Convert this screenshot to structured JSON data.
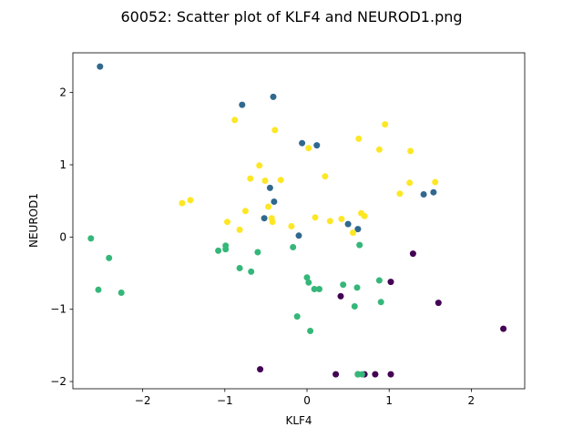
{
  "chart_data": {
    "type": "scatter",
    "title": "60052: Scatter plot of KLF4 and NEUROD1.png",
    "xlabel": "KLF4",
    "ylabel": "NEUROD1",
    "xlim": [
      -2.85,
      2.65
    ],
    "ylim": [
      -2.1,
      2.55
    ],
    "xticks": [
      -2,
      -1,
      0,
      1,
      2
    ],
    "yticks": [
      -2,
      -1,
      0,
      1,
      2
    ],
    "grid": false,
    "legend": "none",
    "series": [
      {
        "color": "#440154",
        "points": [
          [
            -0.57,
            -1.83
          ],
          [
            0.35,
            -1.9
          ],
          [
            0.62,
            -1.9
          ],
          [
            0.7,
            -1.9
          ],
          [
            0.83,
            -1.9
          ],
          [
            1.02,
            -1.9
          ],
          [
            1.02,
            -0.62
          ],
          [
            0.41,
            -0.82
          ],
          [
            1.29,
            -0.23
          ],
          [
            1.6,
            -0.91
          ],
          [
            2.39,
            -1.27
          ]
        ]
      },
      {
        "color": "#31688e",
        "points": [
          [
            -2.52,
            2.36
          ],
          [
            -0.79,
            1.83
          ],
          [
            -0.41,
            1.94
          ],
          [
            -0.06,
            1.3
          ],
          [
            0.12,
            1.27
          ],
          [
            -0.45,
            0.68
          ],
          [
            -0.4,
            0.49
          ],
          [
            -0.52,
            0.26
          ],
          [
            -0.1,
            0.02
          ],
          [
            0.5,
            0.18
          ],
          [
            0.62,
            0.11
          ],
          [
            1.42,
            0.59
          ],
          [
            1.54,
            0.62
          ]
        ]
      },
      {
        "color": "#35b779",
        "points": [
          [
            -2.63,
            -0.02
          ],
          [
            -2.41,
            -0.29
          ],
          [
            -2.54,
            -0.73
          ],
          [
            -2.26,
            -0.77
          ],
          [
            -1.08,
            -0.19
          ],
          [
            -0.99,
            -0.12
          ],
          [
            -0.99,
            -0.17
          ],
          [
            -0.82,
            -0.43
          ],
          [
            -0.68,
            -0.48
          ],
          [
            -0.6,
            -0.21
          ],
          [
            -0.17,
            -0.14
          ],
          [
            -0.12,
            -1.1
          ],
          [
            0.0,
            -0.56
          ],
          [
            0.02,
            -0.63
          ],
          [
            0.09,
            -0.72
          ],
          [
            0.15,
            -0.72
          ],
          [
            0.04,
            -1.3
          ],
          [
            0.44,
            -0.66
          ],
          [
            0.58,
            -0.96
          ],
          [
            0.61,
            -0.7
          ],
          [
            0.64,
            -0.11
          ],
          [
            0.88,
            -0.6
          ],
          [
            0.9,
            -0.9
          ],
          [
            0.62,
            -1.9
          ],
          [
            0.67,
            -1.9
          ]
        ]
      },
      {
        "color": "#fde725",
        "points": [
          [
            -1.52,
            0.47
          ],
          [
            -1.42,
            0.51
          ],
          [
            -0.97,
            0.21
          ],
          [
            -0.82,
            0.1
          ],
          [
            -0.75,
            0.36
          ],
          [
            -0.88,
            1.62
          ],
          [
            -0.69,
            0.81
          ],
          [
            -0.58,
            0.99
          ],
          [
            -0.51,
            0.78
          ],
          [
            -0.47,
            0.42
          ],
          [
            -0.43,
            0.26
          ],
          [
            -0.42,
            0.21
          ],
          [
            -0.39,
            1.48
          ],
          [
            -0.32,
            0.79
          ],
          [
            -0.19,
            0.15
          ],
          [
            0.02,
            1.23
          ],
          [
            0.1,
            0.27
          ],
          [
            0.22,
            0.84
          ],
          [
            0.28,
            0.22
          ],
          [
            0.42,
            0.25
          ],
          [
            0.56,
            0.06
          ],
          [
            0.63,
            1.36
          ],
          [
            0.66,
            0.33
          ],
          [
            0.7,
            0.29
          ],
          [
            0.88,
            1.21
          ],
          [
            0.95,
            1.56
          ],
          [
            1.13,
            0.6
          ],
          [
            1.25,
            0.75
          ],
          [
            1.26,
            1.19
          ],
          [
            1.56,
            0.76
          ]
        ]
      }
    ]
  }
}
